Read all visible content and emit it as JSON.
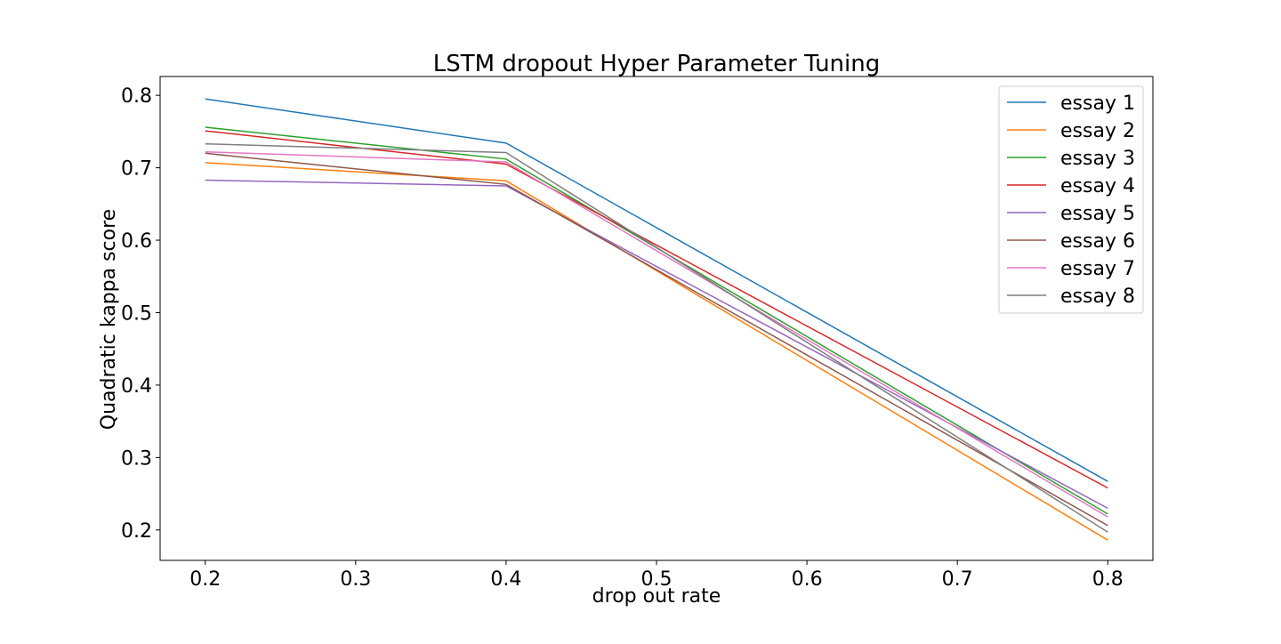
{
  "chart_data": {
    "type": "line",
    "title": "LSTM dropout Hyper Parameter Tuning",
    "xlabel": "drop out rate",
    "ylabel": "Quadratic kappa score",
    "x": [
      0.2,
      0.4,
      0.8
    ],
    "xlim": [
      0.17,
      0.83
    ],
    "ylim": [
      0.158,
      0.826
    ],
    "xticks": [
      0.2,
      0.3,
      0.4,
      0.5,
      0.6,
      0.7,
      0.8
    ],
    "yticks": [
      0.2,
      0.3,
      0.4,
      0.5,
      0.6,
      0.7,
      0.8
    ],
    "xtick_labels": [
      "0.2",
      "0.3",
      "0.4",
      "0.5",
      "0.6",
      "0.7",
      "0.8"
    ],
    "ytick_labels": [
      "0.2",
      "0.3",
      "0.4",
      "0.5",
      "0.6",
      "0.7",
      "0.8"
    ],
    "grid": false,
    "legend_position": "top-right",
    "series": [
      {
        "name": "essay 1",
        "color": "#1f77b4",
        "values": [
          0.795,
          0.734,
          0.267
        ]
      },
      {
        "name": "essay 2",
        "color": "#ff7f0e",
        "values": [
          0.707,
          0.682,
          0.186
        ]
      },
      {
        "name": "essay 3",
        "color": "#2ca02c",
        "values": [
          0.756,
          0.712,
          0.222
        ]
      },
      {
        "name": "essay 4",
        "color": "#d62728",
        "values": [
          0.751,
          0.705,
          0.258
        ]
      },
      {
        "name": "essay 5",
        "color": "#9467bd",
        "values": [
          0.683,
          0.675,
          0.23
        ]
      },
      {
        "name": "essay 6",
        "color": "#8c564b",
        "values": [
          0.72,
          0.677,
          0.206
        ]
      },
      {
        "name": "essay 7",
        "color": "#e377c2",
        "values": [
          0.722,
          0.708,
          0.218
        ]
      },
      {
        "name": "essay 8",
        "color": "#7f7f7f",
        "values": [
          0.733,
          0.721,
          0.197
        ]
      }
    ]
  }
}
